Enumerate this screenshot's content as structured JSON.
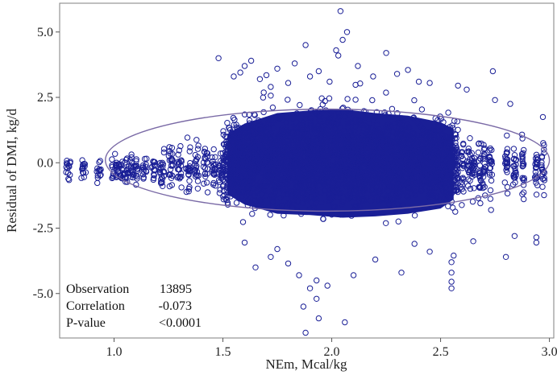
{
  "chart_data": {
    "type": "scatter",
    "xlabel": "NEm, Mcal/kg",
    "ylabel": "Residual of DMI, kg/d",
    "xlim": [
      0.75,
      3.02
    ],
    "ylim": [
      -6.7,
      6.1
    ],
    "x_ticks": [
      1.0,
      1.5,
      2.0,
      2.5,
      3.0
    ],
    "x_tick_labels": [
      "1.0",
      "1.5",
      "2.0",
      "2.5",
      "3.0"
    ],
    "y_ticks": [
      5.0,
      2.5,
      0.0,
      -2.5,
      -5.0
    ],
    "y_tick_labels": [
      "5.0",
      "2.5",
      "0.0",
      "-2.5",
      "-5.0"
    ],
    "grid": false,
    "marker": "open-circle",
    "marker_color": "#1a1f96",
    "ellipse_color": "#7a6aa6",
    "ellipse": {
      "center_x": 1.98,
      "center_y": 0.1,
      "radius_x": 1.02,
      "radius_y": 1.95
    },
    "stats": [
      {
        "label": "Observation",
        "value": "13895"
      },
      {
        "label": "Correlation",
        "value": "-0.073"
      },
      {
        "label": "P-value",
        "value": "<0.0001"
      }
    ],
    "series": [
      {
        "points": [
          [
            2.04,
            5.8
          ],
          [
            2.05,
            4.7
          ],
          [
            1.88,
            4.5
          ],
          [
            2.03,
            4.1
          ],
          [
            1.48,
            4.0
          ],
          [
            1.63,
            3.9
          ],
          [
            2.25,
            4.2
          ],
          [
            1.6,
            3.7
          ],
          [
            1.75,
            3.6
          ],
          [
            1.83,
            3.8
          ],
          [
            1.94,
            3.5
          ],
          [
            2.12,
            3.7
          ],
          [
            2.35,
            3.55
          ],
          [
            2.74,
            3.5
          ],
          [
            2.45,
            3.05
          ],
          [
            2.19,
            3.3
          ],
          [
            2.58,
            2.95
          ],
          [
            2.62,
            2.8
          ],
          [
            2.75,
            2.4
          ],
          [
            2.82,
            2.25
          ],
          [
            2.97,
            1.75
          ],
          [
            1.72,
            2.9
          ],
          [
            1.99,
            3.1
          ],
          [
            1.67,
            3.2
          ],
          [
            2.07,
            5.0
          ],
          [
            2.02,
            4.3
          ],
          [
            1.9,
            3.3
          ],
          [
            1.8,
            3.05
          ],
          [
            2.3,
            3.4
          ],
          [
            2.4,
            3.1
          ],
          [
            1.55,
            3.3
          ],
          [
            1.58,
            3.45
          ],
          [
            1.7,
            3.35
          ],
          [
            2.06,
            -6.1
          ],
          [
            1.88,
            -6.5
          ],
          [
            1.94,
            -5.95
          ],
          [
            1.93,
            -5.2
          ],
          [
            1.87,
            -5.5
          ],
          [
            1.9,
            -4.8
          ],
          [
            1.98,
            -4.7
          ],
          [
            1.93,
            -4.5
          ],
          [
            2.1,
            -4.3
          ],
          [
            2.2,
            -3.7
          ],
          [
            2.55,
            -4.8
          ],
          [
            2.55,
            -4.55
          ],
          [
            2.55,
            -4.2
          ],
          [
            2.55,
            -3.8
          ],
          [
            2.56,
            -3.55
          ],
          [
            2.65,
            -3.0
          ],
          [
            2.8,
            -3.6
          ],
          [
            2.94,
            -3.05
          ],
          [
            2.94,
            -2.85
          ],
          [
            2.84,
            -2.8
          ],
          [
            1.72,
            -3.6
          ],
          [
            1.65,
            -4.0
          ],
          [
            1.8,
            -3.85
          ],
          [
            2.32,
            -4.2
          ],
          [
            1.85,
            -4.3
          ],
          [
            2.45,
            -3.4
          ],
          [
            2.38,
            -3.1
          ],
          [
            1.75,
            -3.3
          ],
          [
            1.6,
            -3.05
          ]
        ]
      }
    ]
  }
}
